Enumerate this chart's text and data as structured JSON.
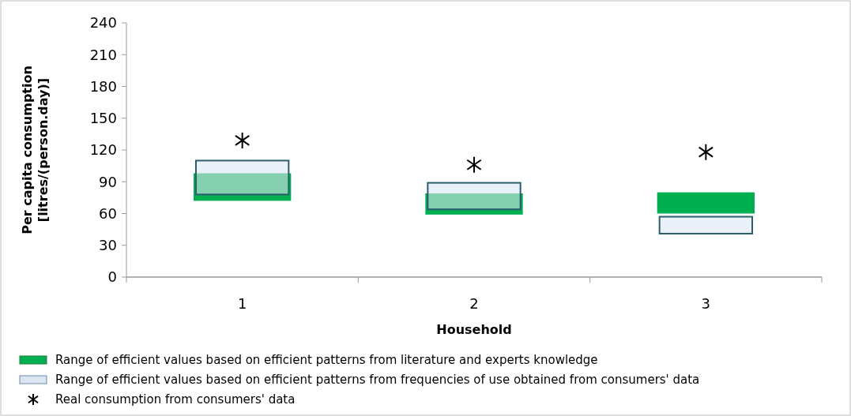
{
  "chart_data": {
    "type": "bar",
    "xlabel": "Household",
    "ylabel": "Per capita consumption\n[litres/(person.day)]",
    "categories": [
      "1",
      "2",
      "3"
    ],
    "ylim": [
      0,
      240
    ],
    "yticks": [
      0,
      30,
      60,
      90,
      120,
      150,
      180,
      210,
      240
    ],
    "legend": "bottom",
    "series": [
      {
        "name": "Range of efficient values based on efficient patterns from literature and experts knowledge",
        "color": "#00b050",
        "base": [
          72,
          59,
          60
        ],
        "values": [
          26,
          20,
          20
        ]
      },
      {
        "name": "Range of efficient values based on efficient patterns from frequencies of use obtained from consumers' data",
        "color": "#dce6f2",
        "base": [
          78,
          64,
          41
        ],
        "values": [
          32,
          25,
          16
        ]
      },
      {
        "name": "Real consumption  from consumers' data",
        "type": "scatter",
        "color": "#000000",
        "marker": "cross",
        "x": [
          "1",
          "2",
          "3"
        ],
        "values": [
          129,
          106,
          118
        ]
      }
    ]
  }
}
